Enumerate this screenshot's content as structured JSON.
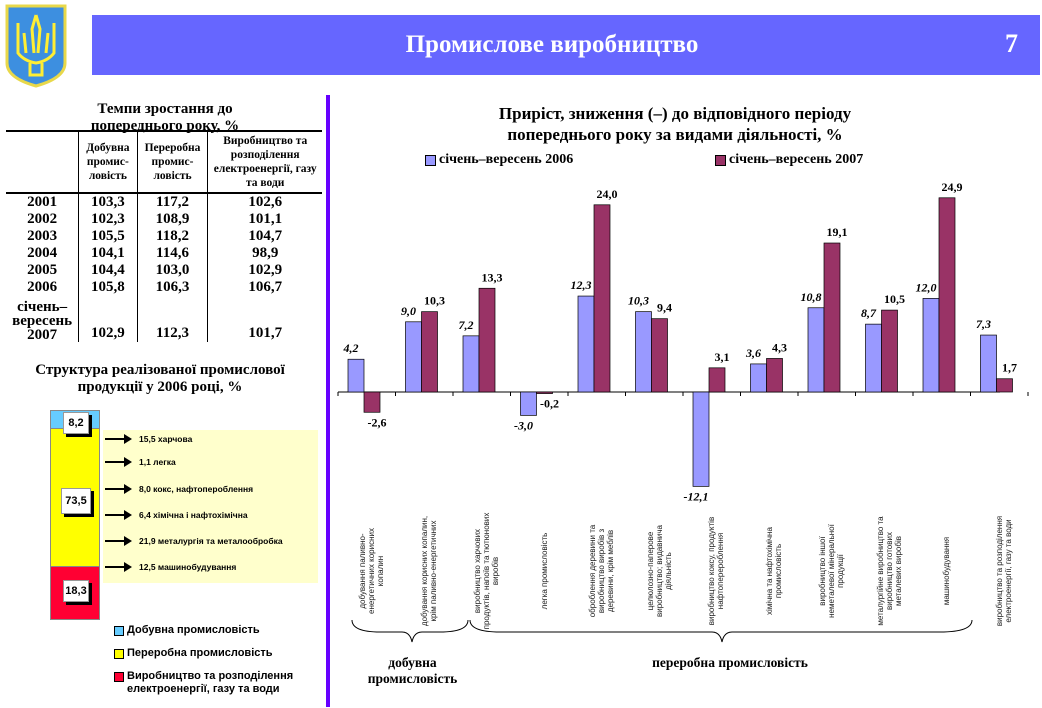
{
  "header": {
    "title": "Промислове виробництво",
    "page_number": "7"
  },
  "growth_table": {
    "title": "Темпи зростання до попереднього року, %",
    "columns": [
      "",
      "Добувна промис-ловість",
      "Переробна промис-ловість",
      "Виробництво та розподілення електроенергії, газу та води"
    ],
    "rows": [
      [
        "2001",
        "103,3",
        "117,2",
        "102,6"
      ],
      [
        "2002",
        "102,3",
        "108,9",
        "101,1"
      ],
      [
        "2003",
        "105,5",
        "118,2",
        "104,7"
      ],
      [
        "2004",
        "104,1",
        "114,6",
        "98,9"
      ],
      [
        "2005",
        "104,4",
        "103,0",
        "102,9"
      ],
      [
        "2006",
        "105,8",
        "106,3",
        "106,7"
      ],
      [
        "січень–вересень 2007",
        "102,9",
        "112,3",
        "101,7"
      ]
    ]
  },
  "structure": {
    "title": "Структура реалізованої промислової продукції у 2006 році, %",
    "segments": [
      {
        "label": "Добувна промисловість",
        "value": "8,2",
        "color": "#66ccff"
      },
      {
        "label": "Переробна промисловість",
        "value": "73,5",
        "color": "#ffff00"
      },
      {
        "label": "Виробництво та розподілення електроенергії, газу та води",
        "value": "18,3",
        "color": "#ff0033"
      }
    ],
    "breakdown": [
      "15,5  харчова",
      "1,1   легка",
      "8,0  кокс, нафтопероблення",
      "6,4  хімічна і нафтохімічна",
      "21,9 металургія та металообробка",
      "12,5  машинобудування"
    ]
  },
  "chart_data": {
    "type": "bar",
    "title": "Приріст, зниження (–) до відповідного періоду попереднього року за видами діяльності, %",
    "categories": [
      "добування паливно-енергетичних корисних копалин",
      "добування корисних копалин, крім паливно-енергетичних",
      "виробництво харчових продуктів, напоїв та тютюнових виробів",
      "легка промисловість",
      "оброблення деревини та виробництво виробів з деревини, крім меблів",
      "целюлозно-паперове виробництво; видавнича діяльність",
      "виробництво коксу, продуктів нафтоперероблення",
      "хімічна та нафтохімічна промисловість",
      "виробництво іншої неметалевої мінеральної продукції",
      "металургійне виробництво та виробництво готових металевих виробів",
      "машинобудування",
      "виробництво та розподілення електроенергії, газу та води"
    ],
    "series": [
      {
        "name": "січень–вересень 2006",
        "color": "#9999ff",
        "values": [
          4.2,
          9.0,
          7.2,
          -3.0,
          12.3,
          10.3,
          -12.1,
          3.6,
          10.8,
          8.7,
          12.0,
          7.3
        ],
        "labels": [
          "4,2",
          "9,0",
          "7,2",
          "-3,0",
          "12,3",
          "10,3",
          "-12,1",
          "3,6",
          "10,8",
          "8,7",
          "12,0",
          "7,3"
        ]
      },
      {
        "name": "січень–вересень 2007",
        "color": "#993366",
        "values": [
          -2.6,
          10.3,
          13.3,
          -0.2,
          24.0,
          9.4,
          3.1,
          4.3,
          19.1,
          10.5,
          24.9,
          1.7
        ],
        "labels": [
          "-2,6",
          "10,3",
          "13,3",
          "-0,2",
          "24,0",
          "9,4",
          "3,1",
          "4,3",
          "19,1",
          "10,5",
          "24,9",
          "1,7"
        ]
      }
    ],
    "groups": [
      "добувна промисловість",
      "переробна промисловість"
    ]
  }
}
